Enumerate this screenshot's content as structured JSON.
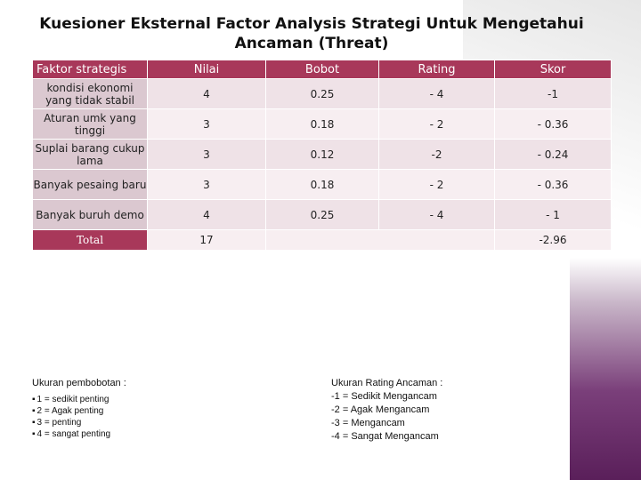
{
  "header": {
    "title": "Kuesioner Eksternal Factor Analysis Strategi Untuk Mengetahui Ancaman (Threat)"
  },
  "table": {
    "columns": [
      "Faktor strategis",
      "Nilai",
      "Bobot",
      "Rating",
      "Skor"
    ],
    "rows": [
      [
        "kondisi ekonomi yang tidak stabil",
        "4",
        "0.25",
        "- 4",
        "-1"
      ],
      [
        "Aturan umk yang tinggi",
        "3",
        "0.18",
        "- 2",
        "- 0.36"
      ],
      [
        "Suplai barang cukup lama",
        "3",
        "0.12",
        "-2",
        "- 0.24"
      ],
      [
        "Banyak pesaing baru",
        "3",
        "0.18",
        "- 2",
        "- 0.36"
      ],
      [
        "Banyak buruh demo",
        "4",
        "0.25",
        "- 4",
        "- 1"
      ]
    ],
    "total": {
      "label": "Total",
      "nilai": "17",
      "skor": "-2.96"
    }
  },
  "notes": {
    "weight": {
      "title": "Ukuran pembobotan :",
      "items": [
        "1 = sedikit penting",
        "2 = Agak penting",
        "3 = penting",
        "4 = sangat penting"
      ]
    },
    "rating": {
      "title": "Ukuran Rating Ancaman :",
      "items": [
        "-1 = Sedikit Mengancam",
        "-2 = Agak Mengancam",
        "-3 = Mengancam",
        "-4 = Sangat Mengancam"
      ]
    }
  }
}
